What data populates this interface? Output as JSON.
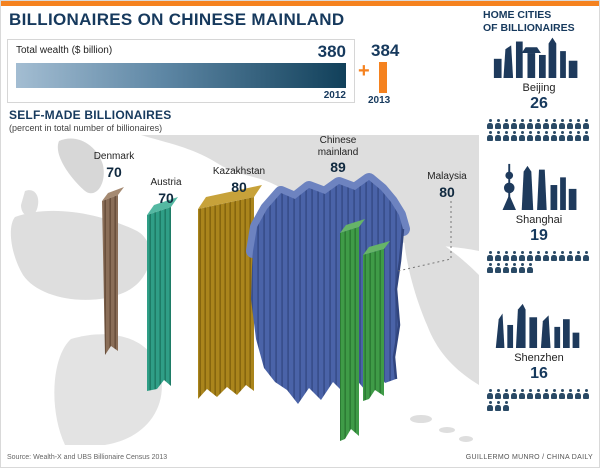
{
  "page": {
    "title": "BILLIONAIRES ON CHINESE MAINLAND",
    "source": "Source: Wealth-X and UBS Billionaire Census 2013",
    "credit": "GUILLERMO MUNRO / CHINA DAILY"
  },
  "colors": {
    "accent_orange": "#f5821f",
    "navy": "#16395d",
    "wealth_bar_gradient_start": "#a3bdd2",
    "wealth_bar_gradient_end": "#11405a",
    "denmark_column": "#8a6e58",
    "austria_column": "#2f9e86",
    "kazakhstan_column": "#aa851c",
    "chinese_mainland_column": "#4a63a8",
    "malaysia_column": "#3f9b47",
    "map_gray": "#dedede"
  },
  "wealth": {
    "label": "Total wealth ($ billion)",
    "plus_symbol": "+",
    "years": [
      {
        "year": "2012",
        "value": "380"
      },
      {
        "year": "2013",
        "value": "384"
      }
    ]
  },
  "selfmade": {
    "title": "SELF-MADE BILLIONAIRES",
    "subtitle": "(percent in total number of billionaires)",
    "countries": [
      {
        "name": "Denmark",
        "value": "70"
      },
      {
        "name": "Austria",
        "value": "70"
      },
      {
        "name": "Kazakhstan",
        "value": "80"
      },
      {
        "name": "Chinese mainland",
        "value": "89"
      },
      {
        "name": "Malaysia",
        "value": "80"
      }
    ]
  },
  "cities": {
    "title_line1": "HOME CITIES",
    "title_line2": "OF BILLIONAIRES",
    "items": [
      {
        "name": "Beijing",
        "count": 26
      },
      {
        "name": "Shanghai",
        "count": 19
      },
      {
        "name": "Shenzhen",
        "count": 16
      }
    ]
  },
  "chart_data": [
    {
      "type": "bar",
      "title": "Total wealth ($ billion)",
      "categories": [
        "2012",
        "2013"
      ],
      "values": [
        380,
        384
      ],
      "ylabel": "Total wealth ($ billion)"
    },
    {
      "type": "bar",
      "title": "Self-made billionaires",
      "ylabel": "percent in total number of billionaires",
      "categories": [
        "Denmark",
        "Austria",
        "Kazakhstan",
        "Chinese mainland",
        "Malaysia"
      ],
      "values": [
        70,
        70,
        80,
        89,
        80
      ],
      "ylim": [
        0,
        100
      ]
    },
    {
      "type": "bar",
      "title": "Home cities of billionaires",
      "categories": [
        "Beijing",
        "Shanghai",
        "Shenzhen"
      ],
      "values": [
        26,
        19,
        16
      ]
    }
  ]
}
